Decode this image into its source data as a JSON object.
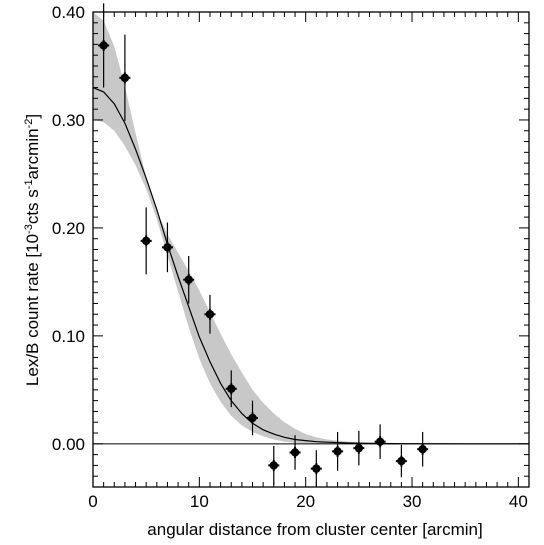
{
  "chart_data": {
    "type": "scatter",
    "title": "",
    "xlabel": "angular distance from cluster center [arcmin]",
    "ylabel_parts": {
      "main": "Lex/B count rate [10",
      "exp1": "-3",
      "mid": "cts s",
      "exp2": "-1",
      "mid2": "arcmin",
      "exp3": "-2",
      "end": "]"
    },
    "xlim": [
      0,
      41
    ],
    "ylim": [
      -0.04,
      0.4
    ],
    "x_ticks": [
      0,
      10,
      20,
      30,
      40
    ],
    "x_tick_labels": [
      "0",
      "10",
      "20",
      "30",
      "40"
    ],
    "y_ticks": [
      0.0,
      0.1,
      0.2,
      0.3,
      0.4
    ],
    "y_tick_labels": [
      "0.00",
      "0.10",
      "0.20",
      "0.30",
      "0.40"
    ],
    "zero_line": 0.0,
    "series": [
      {
        "kind": "points_with_errorbars",
        "x": [
          1,
          3,
          5,
          7,
          9,
          11,
          13,
          15,
          17,
          19,
          21,
          23,
          25,
          27,
          29,
          31
        ],
        "y": [
          0.369,
          0.339,
          0.188,
          0.182,
          0.152,
          0.12,
          0.051,
          0.024,
          -0.02,
          -0.008,
          -0.023,
          -0.007,
          -0.004,
          0.002,
          -0.016,
          -0.005
        ],
        "err": [
          0.039,
          0.04,
          0.031,
          0.023,
          0.022,
          0.018,
          0.017,
          0.016,
          0.018,
          0.016,
          0.017,
          0.018,
          0.016,
          0.016,
          0.015,
          0.016
        ]
      },
      {
        "kind": "model_line",
        "x": [
          0,
          1,
          2,
          3,
          4,
          5,
          6,
          7,
          8,
          9,
          10,
          11,
          12,
          13,
          14,
          15,
          16,
          17,
          18,
          19,
          20,
          21,
          22,
          24,
          26,
          28,
          30,
          35,
          41
        ],
        "y": [
          0.33,
          0.326,
          0.315,
          0.297,
          0.273,
          0.246,
          0.217,
          0.185,
          0.155,
          0.127,
          0.099,
          0.076,
          0.056,
          0.04,
          0.028,
          0.019,
          0.013,
          0.009,
          0.006,
          0.004,
          0.003,
          0.002,
          0.0015,
          0.0008,
          0.0004,
          0.0002,
          0.0001,
          0.0,
          0.0
        ]
      },
      {
        "kind": "confidence_band",
        "x": [
          0,
          1,
          2,
          3,
          4,
          5,
          6,
          7,
          8,
          9,
          10,
          11,
          12,
          13,
          14,
          15,
          16,
          17,
          18,
          19,
          20,
          21,
          22,
          23,
          24,
          26,
          28,
          30,
          35,
          41
        ],
        "lower": [
          0.3,
          0.298,
          0.29,
          0.276,
          0.258,
          0.236,
          0.208,
          0.175,
          0.141,
          0.108,
          0.079,
          0.056,
          0.039,
          0.026,
          0.017,
          0.011,
          0.007,
          0.004,
          0.002,
          0.001,
          0.0005,
          0.0003,
          0.0002,
          0.0001,
          0.0,
          0.0,
          0.0,
          0.0,
          0.0,
          0.0
        ],
        "upper": [
          0.4,
          0.392,
          0.368,
          0.331,
          0.288,
          0.247,
          0.216,
          0.194,
          0.177,
          0.16,
          0.142,
          0.122,
          0.102,
          0.083,
          0.066,
          0.05,
          0.038,
          0.028,
          0.02,
          0.014,
          0.009,
          0.006,
          0.004,
          0.003,
          0.002,
          0.0009,
          0.0004,
          0.0002,
          0.0,
          0.0
        ]
      }
    ],
    "colors": {
      "band": "#c8c8c8",
      "line": "#000000",
      "points": "#000000",
      "frame": "#000000"
    },
    "marker": "filled-circle-cross"
  }
}
